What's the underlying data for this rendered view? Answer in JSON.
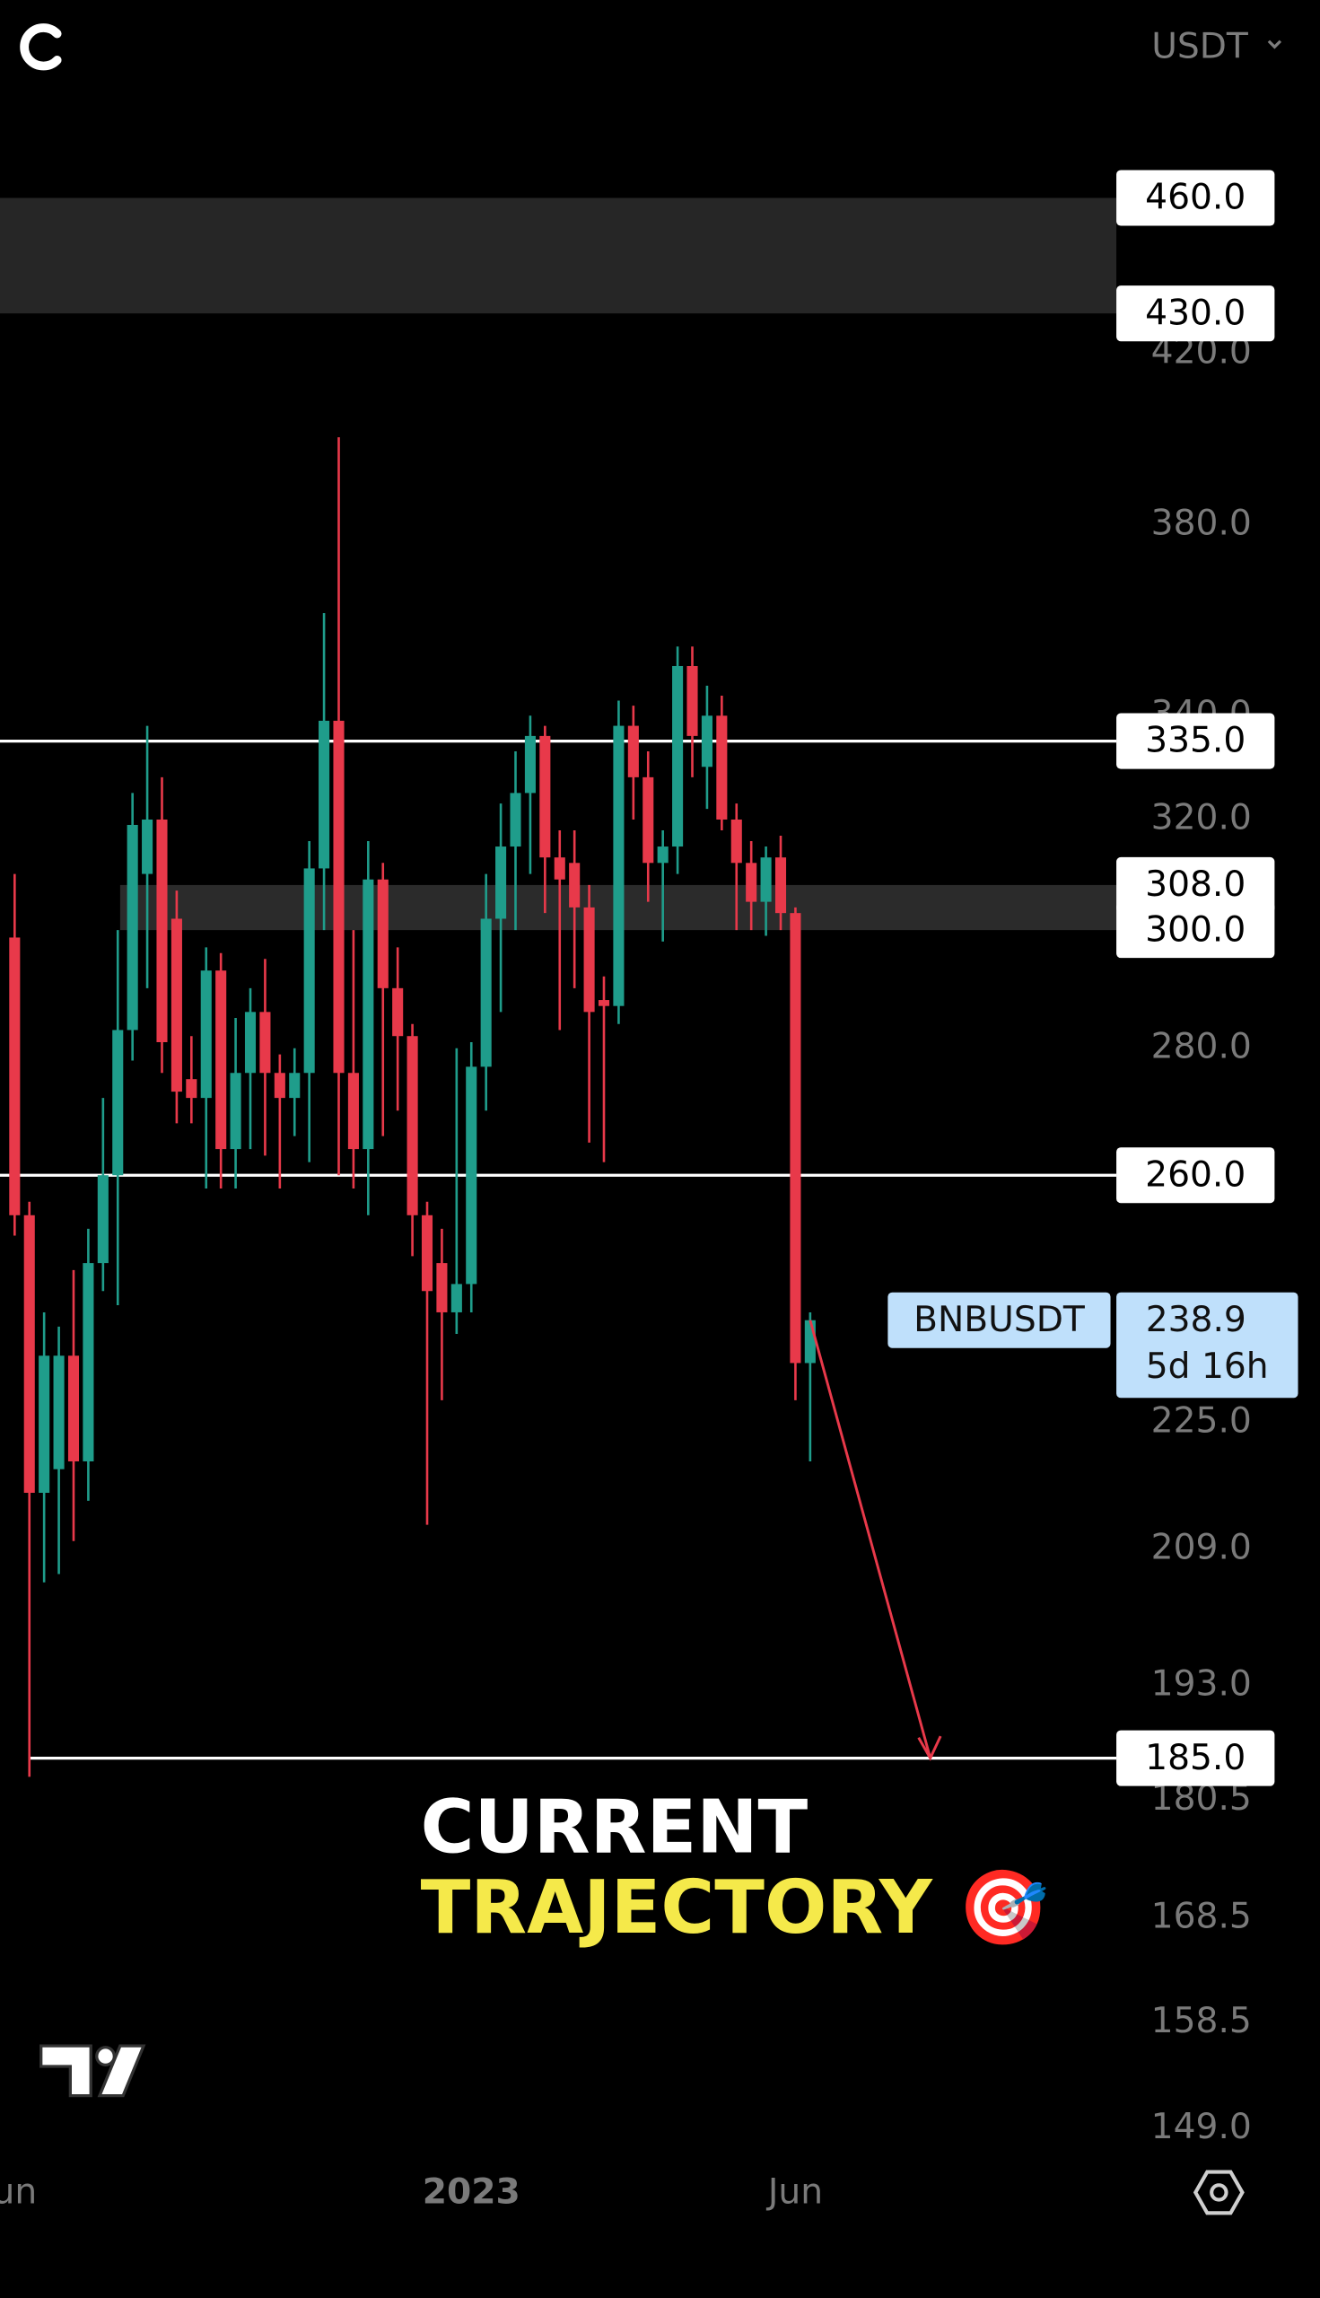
{
  "chart_data": {
    "type": "candlestick",
    "currency": "USDT",
    "log_scale": true,
    "up_color": "#1f9d8b",
    "down_color": "#e8394a",
    "categories": [
      "un",
      null,
      null,
      null,
      null,
      null,
      null,
      null,
      null,
      null,
      null,
      null,
      null,
      null,
      null,
      null,
      null,
      null,
      null,
      null,
      null,
      null,
      null,
      null,
      null,
      null,
      null,
      null,
      null,
      null,
      null,
      "2023",
      null,
      null,
      null,
      null,
      null,
      null,
      null,
      null,
      null,
      null,
      null,
      null,
      null,
      null,
      null,
      null,
      null,
      null,
      null,
      null,
      null,
      "Jun",
      null
    ],
    "open": [
      298.7,
      254,
      216,
      219,
      234,
      220,
      247,
      260,
      283,
      310,
      320,
      302,
      275,
      272,
      293,
      264,
      276,
      286,
      276,
      272,
      276,
      311,
      339,
      276,
      264,
      309,
      290,
      282,
      254,
      247,
      240,
      244,
      277,
      302,
      315,
      325,
      336,
      313,
      312,
      304,
      288,
      287,
      338,
      328,
      312,
      315,
      350,
      330,
      340,
      320,
      312,
      305,
      313,
      303,
      233
    ],
    "high": [
      310,
      256,
      240,
      238,
      246,
      252,
      272,
      300,
      325,
      338,
      328,
      307,
      282,
      297,
      296,
      285,
      290,
      295,
      279,
      280,
      316,
      361,
      400,
      300,
      316,
      312,
      297,
      284,
      256,
      252,
      280,
      281,
      310,
      323,
      333,
      340,
      338,
      318,
      318,
      308,
      292,
      343,
      342,
      333,
      318,
      354,
      354,
      346,
      344,
      323,
      316,
      315,
      317,
      304,
      240
    ],
    "low": [
      251,
      183,
      205,
      206,
      210,
      215,
      243,
      241,
      278,
      290,
      276,
      268,
      268,
      258,
      258,
      258,
      264,
      263,
      258,
      266,
      262,
      300,
      260,
      258,
      254,
      266,
      270,
      248,
      212,
      228,
      237,
      240,
      270,
      286,
      300,
      310,
      303,
      283,
      290,
      265,
      262,
      284,
      320,
      305,
      298,
      310,
      328,
      322,
      318,
      300,
      300,
      299,
      300,
      228,
      220
    ],
    "close": [
      254,
      216,
      234,
      234,
      220,
      247,
      260,
      283,
      319,
      320,
      281,
      273,
      272,
      293,
      264,
      276,
      286,
      276,
      272,
      276,
      311,
      339,
      276,
      264,
      309,
      290,
      282,
      254,
      243,
      240,
      244,
      277,
      302,
      315,
      325,
      336,
      313,
      309,
      304,
      286,
      287,
      338,
      328,
      312,
      315,
      350,
      336,
      340,
      320,
      312,
      305,
      313,
      303,
      233,
      238.9
    ],
    "ylim": [
      146.8,
      490.5
    ],
    "yticks": [
      {
        "value": 420,
        "label": "420.0"
      },
      {
        "value": 380,
        "label": "380.0"
      },
      {
        "value": 340,
        "label": "340.0"
      },
      {
        "value": 320,
        "label": "320.0"
      },
      {
        "value": 280,
        "label": "280.0"
      },
      {
        "value": 225,
        "label": "225.0"
      },
      {
        "value": 209,
        "label": "209.0"
      },
      {
        "value": 193,
        "label": "193.0"
      },
      {
        "value": 180.5,
        "label": "180.5"
      },
      {
        "value": 168.5,
        "label": "168.5"
      },
      {
        "value": 158.5,
        "label": "158.5"
      },
      {
        "value": 149,
        "label": "149.0"
      }
    ],
    "zones": [
      {
        "top": {
          "value": 460,
          "label": "460.0"
        },
        "bottom": {
          "value": 430,
          "label": "430.0"
        }
      },
      {
        "top": {
          "value": 308,
          "label": "308.0"
        },
        "bottom": {
          "value": 300,
          "label": "300.0"
        }
      }
    ],
    "lines": [
      {
        "value": 335,
        "label": "335.0"
      },
      {
        "value": 260,
        "label": "260.0"
      },
      {
        "value": 185,
        "label": "185.0"
      }
    ],
    "last_price": {
      "symbol": "BNBUSDT",
      "value": 238.9,
      "countdown": "5d 16h"
    },
    "annotation": [
      "CURRENT",
      "TRAJECTORY 🎯"
    ]
  }
}
